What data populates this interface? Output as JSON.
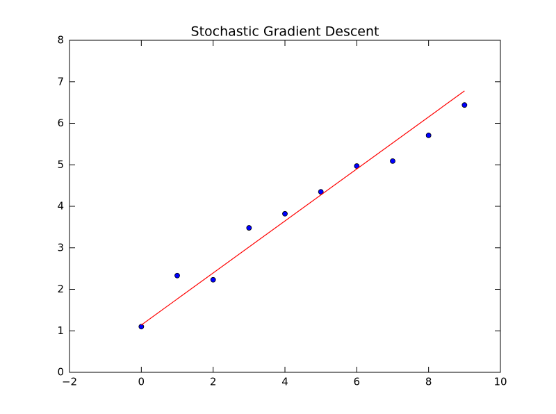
{
  "chart_data": {
    "type": "scatter",
    "title": "Stochastic Gradient Descent",
    "xlim": [
      -2,
      10
    ],
    "xticks": [
      {
        "value": -2,
        "label": "−2"
      },
      0,
      2,
      4,
      6,
      8,
      10
    ],
    "ylim": [
      0,
      8
    ],
    "yticks": [
      0,
      1,
      2,
      3,
      4,
      5,
      6,
      7,
      8
    ],
    "grid": false,
    "series": [
      {
        "type": "scatter",
        "color": "#0000ff",
        "x": [
          0,
          1,
          2,
          3,
          4,
          5,
          6,
          7,
          8,
          9
        ],
        "values": [
          1.1,
          2.33,
          2.23,
          3.48,
          3.82,
          4.35,
          4.97,
          5.09,
          5.71,
          6.44
        ]
      },
      {
        "type": "line",
        "color": "#ff0000",
        "x": [
          0,
          9
        ],
        "values": [
          1.14,
          6.78
        ]
      }
    ]
  }
}
